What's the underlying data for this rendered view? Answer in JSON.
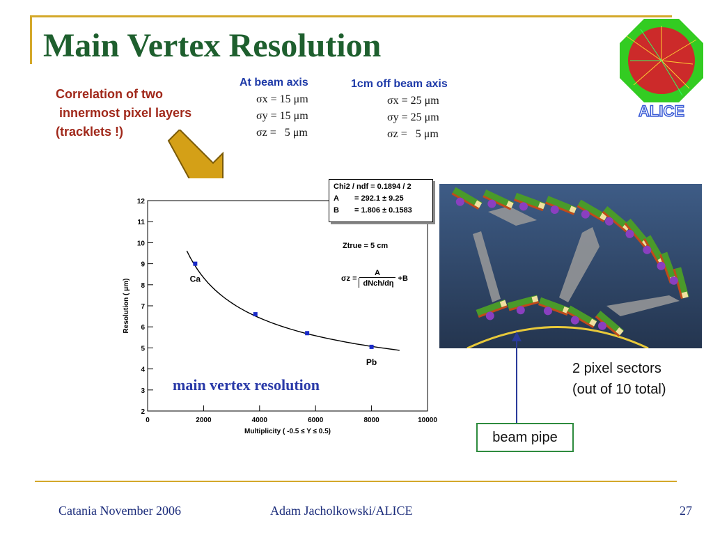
{
  "slide": {
    "title": "Main Vertex Resolution",
    "logo_text": "ALICE",
    "correlation_text": "Correlation of two\n innermost pixel layers\n(tracklets !)",
    "col1": {
      "heading": "At beam axis",
      "values": "σx = 15 μm\nσy = 15 μm\nσz =   5 μm"
    },
    "col2": {
      "heading": "1cm off beam axis",
      "values": "σx = 25 μm\nσy = 25 μm\nσz =   5 μm"
    },
    "plot_caption": "main vertex resolution",
    "fit_box": {
      "chi2": "Chi2 / ndf = 0.1894 / 2",
      "A_label": "A",
      "A_val": "= 292.1  ±  9.25",
      "B_label": "B",
      "B_val": "= 1.806  ± 0.1583"
    },
    "ztrue": "Ztrue = 5 cm",
    "formula": {
      "lhs": "σz =",
      "num": "A",
      "den": "dNch/dη",
      "plus": "+B"
    },
    "sectors_label": "2 pixel sectors\n(out of 10 total)",
    "beam_pipe_label": "beam pipe",
    "footer": {
      "left": "Catania November 2006",
      "center": "Adam Jacholkowski/ALICE",
      "page": "27"
    }
  },
  "chart_data": {
    "type": "scatter",
    "xlabel": "Multiplicity ( -0.5 ≤ Y ≤ 0.5)",
    "ylabel": "Resolution ( μm)",
    "xlim": [
      0,
      10000
    ],
    "ylim": [
      2,
      12
    ],
    "x_ticks": [
      "0",
      "2000",
      "4000",
      "6000",
      "8000",
      "10000"
    ],
    "y_ticks": [
      "2",
      "3",
      "4",
      "5",
      "6",
      "7",
      "8",
      "9",
      "10",
      "11",
      "12"
    ],
    "points": [
      {
        "x": 1700,
        "y": 9.0,
        "label": "Ca"
      },
      {
        "x": 3850,
        "y": 6.6,
        "label": ""
      },
      {
        "x": 5700,
        "y": 5.7,
        "label": ""
      },
      {
        "x": 8000,
        "y": 5.05,
        "label": "Pb"
      }
    ],
    "fit": {
      "A": 292.1,
      "B": 1.806,
      "x_range": [
        1400,
        9000
      ]
    },
    "colors": {
      "points": "#1a2bc8",
      "curve": "#000000"
    }
  }
}
